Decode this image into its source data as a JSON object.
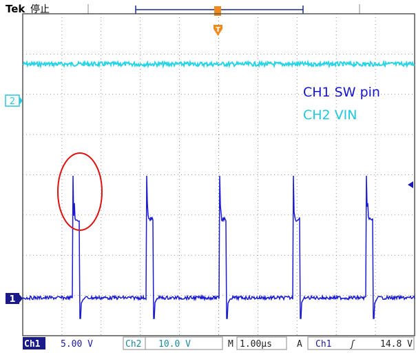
{
  "header": {
    "brand": "Tek",
    "status": "停止",
    "trigger_marker": "T"
  },
  "annotations": [
    "CH1 SW pin",
    "CH2 VIN"
  ],
  "channel_markers": [
    "2",
    "1"
  ],
  "status_bar": {
    "ch1_label": "Ch1",
    "ch1_scale": "5.00 V",
    "ch2_label": "Ch2",
    "ch2_scale": "10.0 V",
    "time_label": "M",
    "time_scale": "1.00µs",
    "trigger_label": "A",
    "trigger_source": "Ch1",
    "trigger_slope": "ʃ",
    "trigger_level": "14.8 V"
  }
}
